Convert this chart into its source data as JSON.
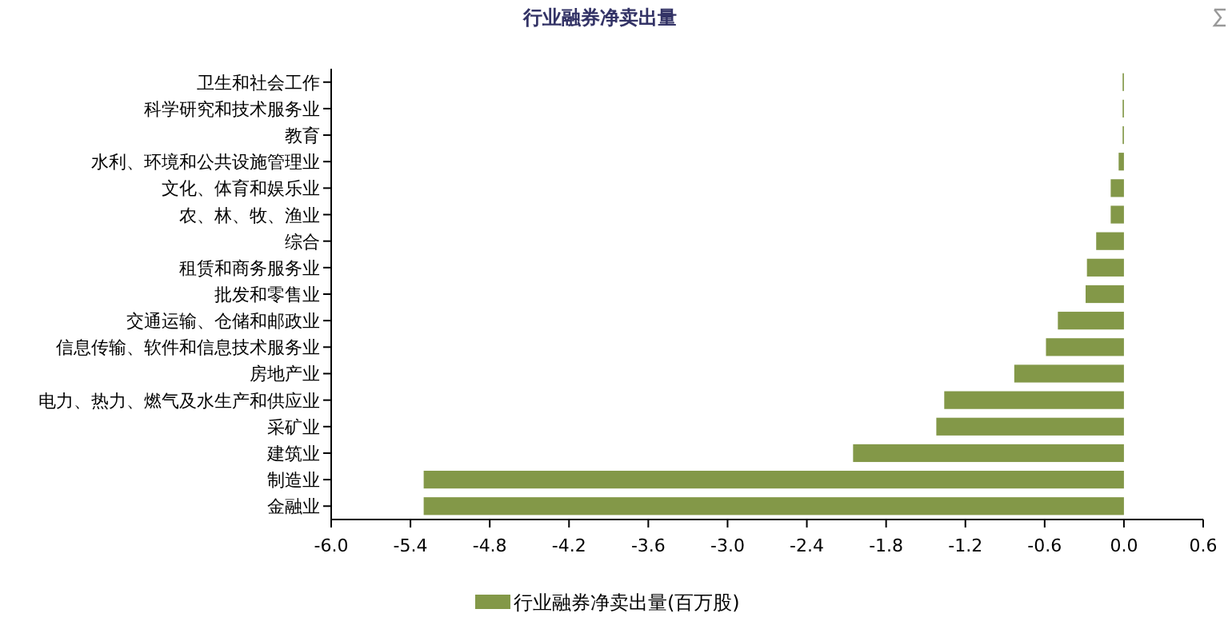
{
  "chart_data": {
    "type": "bar",
    "orientation": "horizontal",
    "title": "行业融券净卖出量",
    "categories": [
      "卫生和社会工作",
      "科学研究和技术服务业",
      "教育",
      "水利、环境和公共设施管理业",
      "文化、体育和娱乐业",
      "农、林、牧、渔业",
      "综合",
      "租赁和商务服务业",
      "批发和零售业",
      "交通运输、仓储和邮政业",
      "信息传输、软件和信息技术服务业",
      "房地产业",
      "电力、热力、燃气及水生产和供应业",
      "采矿业",
      "建筑业",
      "制造业",
      "金融业"
    ],
    "series": [
      {
        "name": "行业融券净卖出量(百万股)",
        "color": "#839848",
        "values": [
          -0.01,
          -0.01,
          -0.01,
          -0.04,
          -0.1,
          -0.1,
          -0.21,
          -0.28,
          -0.29,
          -0.5,
          -0.59,
          -0.83,
          -1.36,
          -1.42,
          -2.05,
          -5.3,
          -5.3
        ]
      }
    ],
    "xlim": [
      -6.0,
      0.6
    ],
    "xticks": [
      {
        "value": -6,
        "label": "-6.0"
      },
      -5.4,
      -4.8,
      -4.2,
      -3.6,
      {
        "value": -3,
        "label": "-3.0"
      },
      -2.4,
      -1.8,
      -1.2,
      -0.6,
      {
        "value": 0,
        "label": "0.0"
      },
      0.6
    ],
    "grid": false,
    "legend": "bottom"
  }
}
